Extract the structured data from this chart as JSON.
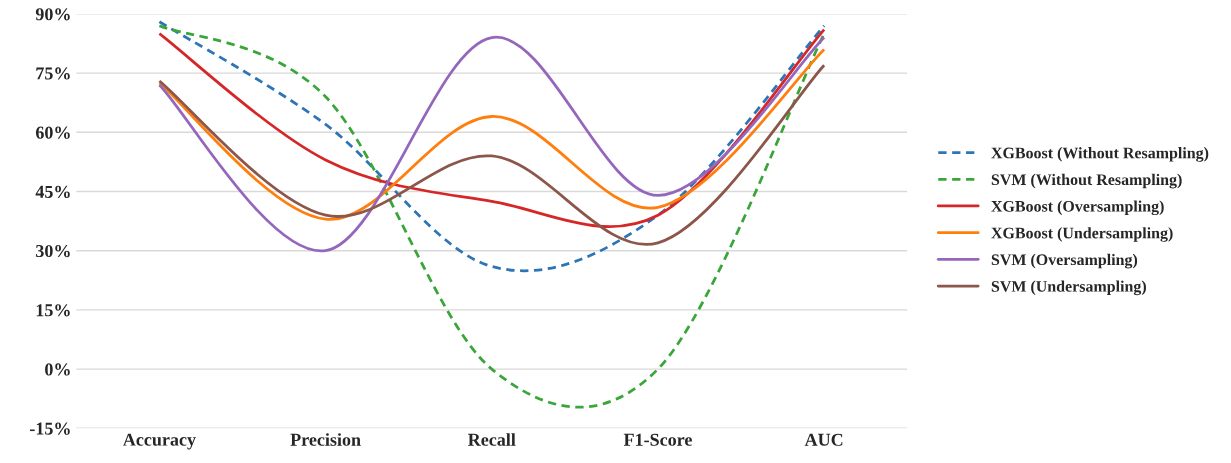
{
  "chart_data": {
    "type": "line",
    "categories": [
      "Accuracy",
      "Precision",
      "Recall",
      "F1-Score",
      "AUC"
    ],
    "series": [
      {
        "name": "XGBoost (Without Resampling)",
        "color": "#2e75b6",
        "line_style": "dashed",
        "values": [
          88,
          62,
          26,
          39,
          87
        ]
      },
      {
        "name": "SVM (Without Resampling)",
        "color": "#3aa63a",
        "line_style": "dashed",
        "values": [
          87,
          69,
          0,
          0,
          85
        ]
      },
      {
        "name": "XGBoost (Oversampling)",
        "color": "#d62728",
        "line_style": "solid",
        "values": [
          85,
          53,
          42.5,
          39,
          86
        ]
      },
      {
        "name": "XGBoost (Undersampling)",
        "color": "#ff7f0e",
        "line_style": "solid",
        "values": [
          72.5,
          38,
          64,
          41,
          81
        ]
      },
      {
        "name": "SVM (Oversampling)",
        "color": "#9467bd",
        "line_style": "solid",
        "values": [
          72,
          30,
          84,
          44,
          84
        ]
      },
      {
        "name": "SVM (Undersampling)",
        "color": "#8c564b",
        "line_style": "solid",
        "values": [
          73,
          39,
          54,
          32,
          77
        ]
      }
    ],
    "ylim": [
      -15,
      90
    ],
    "yticks": [
      {
        "value": -15,
        "label": "-15%"
      },
      {
        "value": 0,
        "label": "0%"
      },
      {
        "value": 15,
        "label": "15%"
      },
      {
        "value": 30,
        "label": "30%"
      },
      {
        "value": 45,
        "label": "45%"
      },
      {
        "value": 60,
        "label": "60%"
      },
      {
        "value": 75,
        "label": "75%"
      },
      {
        "value": 90,
        "label": "90%"
      }
    ],
    "grid": "y",
    "legend": "right",
    "marker": "none"
  }
}
